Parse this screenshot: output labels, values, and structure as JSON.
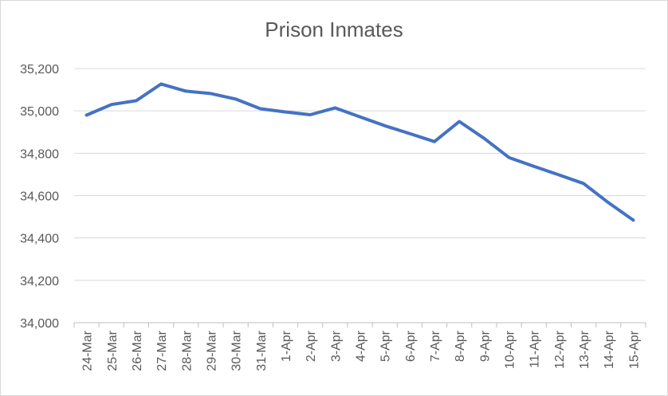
{
  "chart_data": {
    "type": "line",
    "title": "Prison Inmates",
    "xlabel": "",
    "ylabel": "",
    "categories": [
      "24-Mar",
      "25-Mar",
      "26-Mar",
      "27-Mar",
      "28-Mar",
      "29-Mar",
      "30-Mar",
      "31-Mar",
      "1-Apr",
      "2-Apr",
      "3-Apr",
      "4-Apr",
      "5-Apr",
      "6-Apr",
      "7-Apr",
      "8-Apr",
      "9-Apr",
      "10-Apr",
      "11-Apr",
      "12-Apr",
      "13-Apr",
      "14-Apr",
      "15-Apr"
    ],
    "series": [
      {
        "values": [
          34980,
          35030,
          35048,
          35127,
          35093,
          35082,
          35056,
          35010,
          34995,
          34982,
          35014,
          34972,
          34930,
          34893,
          34855,
          34950,
          34870,
          34780,
          34738,
          34698,
          34657,
          34567,
          34484
        ],
        "color": "#4472c4"
      }
    ],
    "yticks": [
      "34,000",
      "34,200",
      "34,400",
      "34,600",
      "34,800",
      "35,000",
      "35,200"
    ],
    "ylim": [
      34000,
      35200
    ],
    "grid": true,
    "legend": "none"
  }
}
